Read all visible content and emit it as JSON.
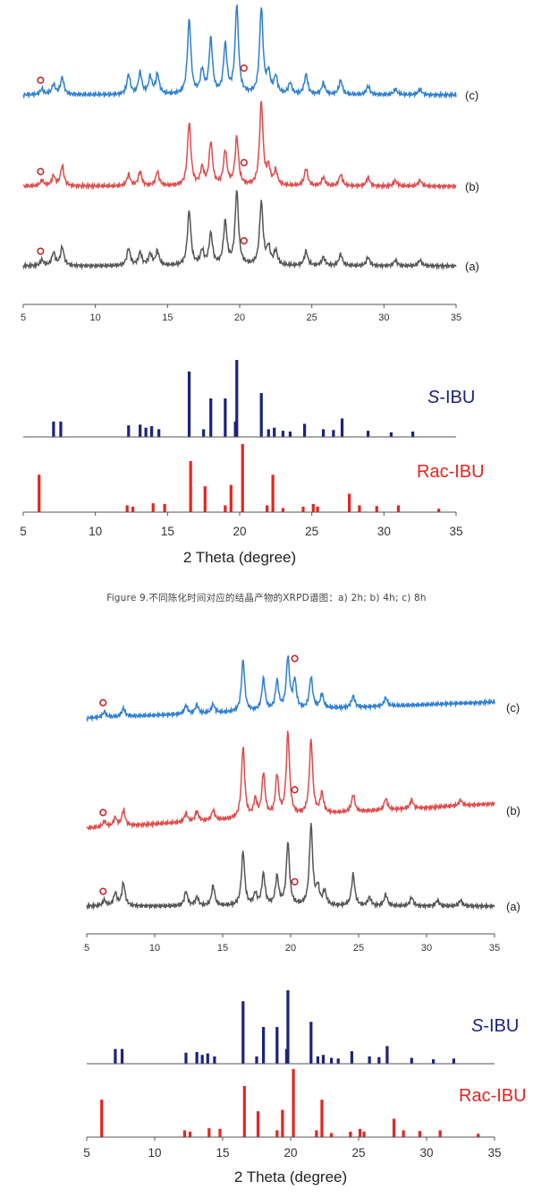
{
  "figure_caption": "Figure 9.不同陈化时间对应的结晶产物的XRPD谱图：a) 2h; b) 4h; c) 8h",
  "chart_data": [
    {
      "type": "line",
      "panel": "top-patterns",
      "xlim": [
        5,
        35
      ],
      "x_ticks": [
        5,
        10,
        15,
        20,
        25,
        30,
        35
      ],
      "xlabel": "",
      "series": [
        {
          "label": "(c)",
          "color": "#2e7fd2",
          "peaks": [
            [
              6.3,
              0.2
            ],
            [
              7.1,
              0.35
            ],
            [
              7.7,
              0.6
            ],
            [
              12.3,
              0.7
            ],
            [
              13.1,
              0.75
            ],
            [
              13.8,
              0.6
            ],
            [
              14.3,
              0.7
            ],
            [
              16.5,
              2.6
            ],
            [
              17.4,
              0.8
            ],
            [
              18.0,
              1.9
            ],
            [
              19.0,
              1.7
            ],
            [
              19.8,
              3.1
            ],
            [
              21.5,
              3.0
            ],
            [
              22.0,
              0.7
            ],
            [
              22.5,
              0.6
            ],
            [
              23.5,
              0.4
            ],
            [
              24.6,
              0.7
            ],
            [
              25.8,
              0.4
            ],
            [
              27.0,
              0.5
            ],
            [
              28.9,
              0.3
            ],
            [
              30.8,
              0.2
            ],
            [
              32.5,
              0.2
            ]
          ]
        },
        {
          "label": "(b)",
          "color": "#e04a4a",
          "peaks": [
            [
              6.3,
              0.2
            ],
            [
              7.1,
              0.35
            ],
            [
              7.7,
              0.7
            ],
            [
              12.3,
              0.4
            ],
            [
              13.1,
              0.5
            ],
            [
              14.3,
              0.5
            ],
            [
              16.5,
              2.2
            ],
            [
              17.4,
              0.6
            ],
            [
              18.0,
              1.5
            ],
            [
              19.0,
              1.2
            ],
            [
              19.8,
              1.7
            ],
            [
              21.5,
              2.9
            ],
            [
              22.0,
              0.6
            ],
            [
              22.5,
              0.5
            ],
            [
              24.6,
              0.6
            ],
            [
              25.8,
              0.3
            ],
            [
              27.0,
              0.4
            ],
            [
              28.9,
              0.3
            ],
            [
              30.8,
              0.2
            ],
            [
              32.5,
              0.2
            ]
          ]
        },
        {
          "label": "(a)",
          "color": "#555555",
          "peaks": [
            [
              6.3,
              0.2
            ],
            [
              7.1,
              0.45
            ],
            [
              7.7,
              0.65
            ],
            [
              12.3,
              0.6
            ],
            [
              13.1,
              0.45
            ],
            [
              13.8,
              0.4
            ],
            [
              14.3,
              0.5
            ],
            [
              16.5,
              1.9
            ],
            [
              17.4,
              0.5
            ],
            [
              18.0,
              1.1
            ],
            [
              19.0,
              1.5
            ],
            [
              19.8,
              2.6
            ],
            [
              21.5,
              2.2
            ],
            [
              22.0,
              0.6
            ],
            [
              22.5,
              0.5
            ],
            [
              24.6,
              0.5
            ],
            [
              25.8,
              0.3
            ],
            [
              27.0,
              0.4
            ],
            [
              28.9,
              0.3
            ],
            [
              30.8,
              0.2
            ],
            [
              32.5,
              0.2
            ]
          ]
        }
      ],
      "markers": [
        [
          6.2,
          "(c)"
        ],
        [
          20.3,
          "(c)"
        ],
        [
          6.2,
          "(b)"
        ],
        [
          20.3,
          "(b)"
        ],
        [
          6.2,
          "(a)"
        ],
        [
          20.3,
          "(a)"
        ]
      ]
    },
    {
      "type": "bar",
      "panel": "top-references",
      "xlim": [
        5,
        35
      ],
      "x_ticks": [
        5,
        10,
        15,
        20,
        25,
        30,
        35
      ],
      "xlabel": "2 Theta (degree)",
      "series": [
        {
          "label": "S-IBU",
          "label_italic": "S",
          "label_rest": "-IBU",
          "color": "#1a237e",
          "sticks": [
            [
              7.1,
              0.2
            ],
            [
              7.6,
              0.2
            ],
            [
              12.3,
              0.15
            ],
            [
              13.1,
              0.16
            ],
            [
              13.5,
              0.12
            ],
            [
              13.9,
              0.14
            ],
            [
              14.4,
              0.1
            ],
            [
              16.5,
              0.85
            ],
            [
              17.5,
              0.1
            ],
            [
              18.0,
              0.5
            ],
            [
              19.0,
              0.5
            ],
            [
              19.7,
              0.2
            ],
            [
              19.8,
              1.0
            ],
            [
              21.5,
              0.57
            ],
            [
              22.0,
              0.1
            ],
            [
              22.4,
              0.12
            ],
            [
              23.0,
              0.08
            ],
            [
              23.5,
              0.07
            ],
            [
              24.5,
              0.17
            ],
            [
              25.8,
              0.1
            ],
            [
              26.5,
              0.09
            ],
            [
              27.1,
              0.24
            ],
            [
              28.9,
              0.08
            ],
            [
              30.5,
              0.06
            ],
            [
              32.0,
              0.07
            ]
          ]
        },
        {
          "label": "Rac-IBU",
          "color": "#e8231e",
          "sticks": [
            [
              6.1,
              0.55
            ],
            [
              12.2,
              0.1
            ],
            [
              12.6,
              0.08
            ],
            [
              14.0,
              0.13
            ],
            [
              14.8,
              0.12
            ],
            [
              16.6,
              0.75
            ],
            [
              17.6,
              0.38
            ],
            [
              19.0,
              0.1
            ],
            [
              19.4,
              0.4
            ],
            [
              20.2,
              1.0
            ],
            [
              21.9,
              0.1
            ],
            [
              22.3,
              0.55
            ],
            [
              23.0,
              0.06
            ],
            [
              24.4,
              0.08
            ],
            [
              25.1,
              0.12
            ],
            [
              25.4,
              0.08
            ],
            [
              27.6,
              0.27
            ],
            [
              28.3,
              0.1
            ],
            [
              29.5,
              0.09
            ],
            [
              31.0,
              0.1
            ],
            [
              33.8,
              0.05
            ]
          ]
        }
      ]
    },
    {
      "type": "line",
      "panel": "bottom-patterns",
      "xlim": [
        5,
        35
      ],
      "x_ticks": [
        5,
        10,
        15,
        20,
        25,
        30,
        35
      ],
      "xlabel": "",
      "series": [
        {
          "label": "(c)",
          "color": "#2e7fd2",
          "peaks": [
            [
              6.3,
              0.2
            ],
            [
              7.7,
              0.3
            ],
            [
              12.3,
              0.3
            ],
            [
              13.1,
              0.3
            ],
            [
              14.3,
              0.3
            ],
            [
              16.5,
              1.8
            ],
            [
              18.0,
              1.1
            ],
            [
              19.0,
              1.0
            ],
            [
              19.8,
              1.8
            ],
            [
              20.3,
              1.0
            ],
            [
              21.5,
              1.1
            ],
            [
              22.3,
              0.5
            ],
            [
              24.6,
              0.4
            ],
            [
              27.0,
              0.3
            ]
          ]
        },
        {
          "label": "(b)",
          "color": "#e04a4a",
          "peaks": [
            [
              6.3,
              0.2
            ],
            [
              7.1,
              0.3
            ],
            [
              7.7,
              0.55
            ],
            [
              12.3,
              0.3
            ],
            [
              13.1,
              0.35
            ],
            [
              14.3,
              0.35
            ],
            [
              16.5,
              2.5
            ],
            [
              17.4,
              0.6
            ],
            [
              18.0,
              1.5
            ],
            [
              19.0,
              1.4
            ],
            [
              19.8,
              2.9
            ],
            [
              21.5,
              2.6
            ],
            [
              22.3,
              0.7
            ],
            [
              24.6,
              0.6
            ],
            [
              27.0,
              0.4
            ],
            [
              28.9,
              0.3
            ],
            [
              32.5,
              0.2
            ]
          ]
        },
        {
          "label": "(a)",
          "color": "#555555",
          "peaks": [
            [
              6.3,
              0.2
            ],
            [
              7.1,
              0.45
            ],
            [
              7.7,
              0.8
            ],
            [
              12.3,
              0.5
            ],
            [
              13.1,
              0.3
            ],
            [
              14.3,
              0.7
            ],
            [
              16.5,
              1.9
            ],
            [
              17.4,
              0.4
            ],
            [
              18.0,
              1.1
            ],
            [
              19.0,
              1.0
            ],
            [
              19.8,
              2.2
            ],
            [
              21.5,
              2.8
            ],
            [
              22.0,
              0.6
            ],
            [
              22.5,
              0.5
            ],
            [
              24.6,
              1.1
            ],
            [
              25.8,
              0.3
            ],
            [
              27.0,
              0.4
            ],
            [
              28.9,
              0.3
            ],
            [
              30.8,
              0.2
            ],
            [
              32.5,
              0.2
            ]
          ]
        }
      ],
      "markers": [
        [
          6.2,
          "(c)"
        ],
        [
          20.3,
          "(c)"
        ],
        [
          6.2,
          "(b)"
        ],
        [
          20.3,
          "(b)"
        ],
        [
          6.2,
          "(a)"
        ],
        [
          20.3,
          "(a)"
        ]
      ]
    },
    {
      "type": "bar",
      "panel": "bottom-references",
      "xlim": [
        5,
        35
      ],
      "x_ticks": [
        5,
        10,
        15,
        20,
        25,
        30,
        35
      ],
      "xlabel": "2 Theta (degree)",
      "series": [
        {
          "label": "S-IBU",
          "label_italic": "S",
          "label_rest": "-IBU",
          "color": "#1a237e",
          "sticks": [
            [
              7.1,
              0.2
            ],
            [
              7.6,
              0.2
            ],
            [
              12.3,
              0.15
            ],
            [
              13.1,
              0.16
            ],
            [
              13.5,
              0.12
            ],
            [
              13.9,
              0.14
            ],
            [
              14.4,
              0.1
            ],
            [
              16.5,
              0.85
            ],
            [
              17.5,
              0.1
            ],
            [
              18.0,
              0.5
            ],
            [
              19.0,
              0.5
            ],
            [
              19.7,
              0.2
            ],
            [
              19.8,
              1.0
            ],
            [
              21.5,
              0.57
            ],
            [
              22.0,
              0.1
            ],
            [
              22.4,
              0.12
            ],
            [
              23.0,
              0.08
            ],
            [
              23.5,
              0.07
            ],
            [
              24.5,
              0.17
            ],
            [
              25.8,
              0.1
            ],
            [
              26.5,
              0.09
            ],
            [
              27.1,
              0.24
            ],
            [
              28.9,
              0.08
            ],
            [
              30.5,
              0.06
            ],
            [
              32.0,
              0.07
            ]
          ]
        },
        {
          "label": "Rac-IBU",
          "color": "#e8231e",
          "sticks": [
            [
              6.1,
              0.55
            ],
            [
              12.2,
              0.1
            ],
            [
              12.6,
              0.08
            ],
            [
              14.0,
              0.13
            ],
            [
              14.8,
              0.12
            ],
            [
              16.6,
              0.75
            ],
            [
              17.6,
              0.38
            ],
            [
              19.0,
              0.1
            ],
            [
              19.4,
              0.4
            ],
            [
              20.2,
              1.0
            ],
            [
              21.9,
              0.1
            ],
            [
              22.3,
              0.55
            ],
            [
              23.0,
              0.06
            ],
            [
              24.4,
              0.08
            ],
            [
              25.1,
              0.12
            ],
            [
              25.4,
              0.08
            ],
            [
              27.6,
              0.27
            ],
            [
              28.3,
              0.1
            ],
            [
              29.5,
              0.09
            ],
            [
              31.0,
              0.1
            ],
            [
              33.8,
              0.05
            ]
          ]
        }
      ]
    }
  ]
}
